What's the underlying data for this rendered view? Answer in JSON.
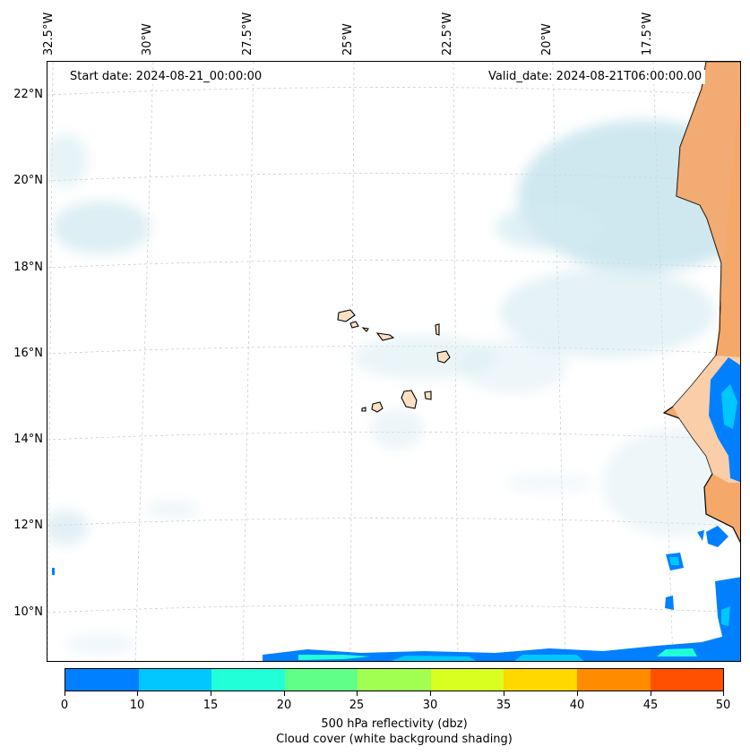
{
  "map": {
    "start_label": "Start date: 2024-08-21_00:00:00",
    "valid_label": "Valid_date: 2024-08-21T06:00:00.00",
    "lon_ticks": [
      "32.5°W",
      "30°W",
      "27.5°W",
      "25°W",
      "22.5°W",
      "20°W",
      "17.5°W"
    ],
    "lat_ticks": [
      "22°N",
      "20°N",
      "18°N",
      "16°N",
      "14°N",
      "12°N",
      "10°N"
    ],
    "land_color": "#f4a86a",
    "island_color": "#fde0c4"
  },
  "colorbar": {
    "ticks": [
      "0",
      "10",
      "15",
      "20",
      "25",
      "30",
      "35",
      "40",
      "45",
      "50"
    ],
    "colors": [
      "#0080ff",
      "#00c8ff",
      "#20ffd8",
      "#60ff88",
      "#a0ff50",
      "#d8ff20",
      "#ffd800",
      "#ff8c00",
      "#ff5000"
    ],
    "title": "500 hPa reflectivity (dbz)",
    "subtitle": "Cloud cover (white background shading)"
  }
}
